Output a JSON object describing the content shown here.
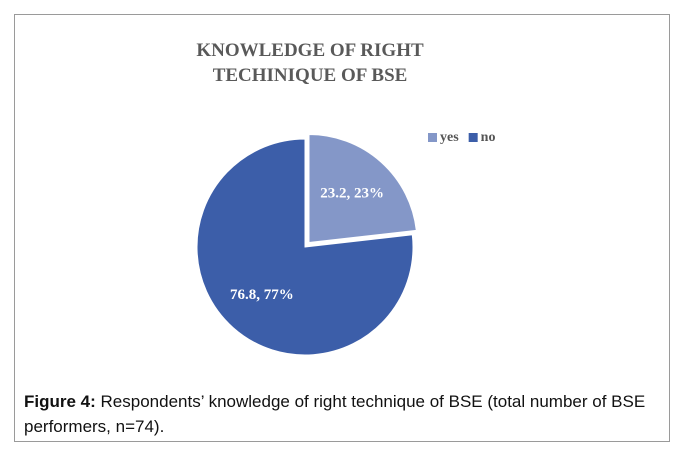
{
  "chart_data": {
    "type": "pie",
    "title": "KNOWLEDGE OF RIGHT TECHINIQUE OF BSE",
    "categories": [
      "yes",
      "no"
    ],
    "values": [
      23.2,
      76.8
    ],
    "value_labels": [
      "23.2, 23%",
      "76.8, 77%"
    ],
    "colors": [
      "#8497c8",
      "#3c5ea9"
    ],
    "legend": "top-right"
  },
  "caption": {
    "label": "Figure 4:",
    "text": "Respondents’ knowledge of right technique of BSE (total number of BSE performers, n=74)."
  }
}
